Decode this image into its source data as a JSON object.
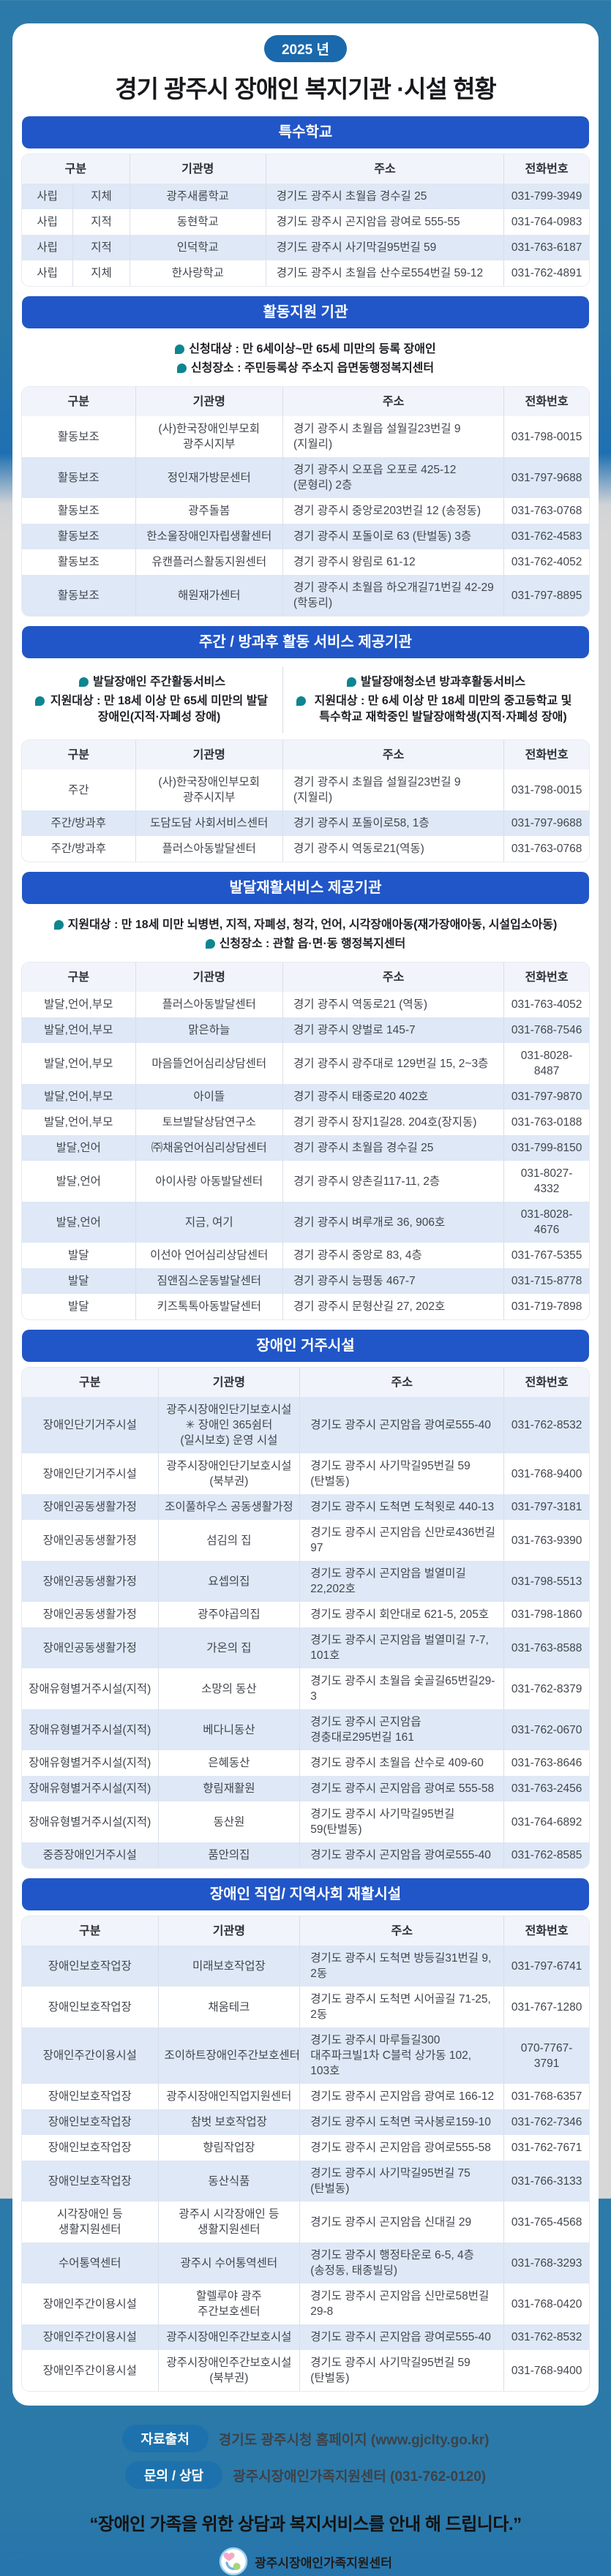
{
  "header": {
    "year_badge": "2025 년",
    "title": "경기 광주시 장애인 복지기관 ·시설 현황"
  },
  "colors": {
    "section_header_blue": "#2156c8",
    "badge_blue": "#1a69ad",
    "note_bubble_teal": "#0e8590",
    "row_tint": "#dee8f6",
    "background_top": "#2b79a8",
    "background_bottom": "#d7d7d7"
  },
  "sections": [
    {
      "id": "special-schools",
      "title": "특수학교",
      "columns": [
        "구분",
        "기관명",
        "주소",
        "전화번호"
      ],
      "split_category": true,
      "zebra_start": "tint",
      "rows": [
        {
          "cat": "사립",
          "sub": "지체",
          "name": "광주새롬학교",
          "addr": "경기도 광주시 초월읍 경수길 25",
          "tel": "031-799-3949"
        },
        {
          "cat": "사립",
          "sub": "지적",
          "name": "동현학교",
          "addr": "경기도 광주시 곤지암읍 광여로 555-55",
          "tel": "031-764-0983"
        },
        {
          "cat": "사립",
          "sub": "지적",
          "name": "인덕학교",
          "addr": "경기도 광주시 사기막길95번길 59",
          "tel": "031-763-6187"
        },
        {
          "cat": "사립",
          "sub": "지체",
          "name": "한사랑학교",
          "addr": "경기도 광주시 초월읍 산수로554번길 59-12",
          "tel": "031-762-4891"
        }
      ]
    },
    {
      "id": "activity-support",
      "title": "활동지원 기관",
      "notes": [
        "신청대상 : 만 6세이상~만 65세 미만의 등록 장애인",
        "신청장소 : 주민등록상 주소지 읍면동행정복지센터"
      ],
      "columns": [
        "구분",
        "기관명",
        "주소",
        "전화번호"
      ],
      "zebra_start": "white",
      "rows": [
        {
          "cat": "활동보조",
          "name": "(사)한국장애인부모회 광주시지부",
          "addr": "경기 광주시 초월읍 설월길23번길 9 (지월리)",
          "tel": "031-798-0015"
        },
        {
          "cat": "활동보조",
          "name": "정인재가방문센터",
          "addr": "경기 광주시 오포읍 오포로 425-12 (문형리) 2층",
          "tel": "031-797-9688"
        },
        {
          "cat": "활동보조",
          "name": "광주돌봄",
          "addr": "경기 광주시 중앙로203번길 12 (송정동)",
          "tel": "031-763-0768"
        },
        {
          "cat": "활동보조",
          "name": "한소울장애인자립생활센터",
          "addr": "경기 광주시 포돌이로 63 (탄벌동) 3층",
          "tel": "031-762-4583"
        },
        {
          "cat": "활동보조",
          "name": "유캔플러스활동지원센터",
          "addr": "경기 광주시 왕림로 61-12",
          "tel": "031-762-4052"
        },
        {
          "cat": "활동보조",
          "name": "해원재가센터",
          "addr": "경기 광주시 초월읍 하오개길71번길 42-29 (학동리)",
          "tel": "031-797-8895"
        }
      ]
    },
    {
      "id": "day-afterschool",
      "title": "주간 / 방과후 활동 서비스 제공기관",
      "notes_columns": [
        [
          "발달장애인 주간활동서비스",
          "지원대상 : 만 18세 이상 만 65세 미만의 발달장애인(지적·자폐성 장애)"
        ],
        [
          "발달장애청소년 방과후활동서비스",
          "지원대상 : 만 6세 이상 만 18세 미만의 중고등학교 및 특수학교 재학중인 발달장애학생(지적·자폐성 장애)"
        ]
      ],
      "columns": [
        "구분",
        "기관명",
        "주소",
        "전화번호"
      ],
      "zebra_start": "white",
      "rows": [
        {
          "cat": "주간",
          "name": "(사)한국장애인부모회 광주시지부",
          "addr": "경기 광주시 초월읍 설월길23번길 9 (지월리)",
          "tel": "031-798-0015"
        },
        {
          "cat": "주간/방과후",
          "name": "도담도담 사회서비스센터",
          "addr": "경기 광주시 포돌이로58, 1층",
          "tel": "031-797-9688"
        },
        {
          "cat": "주간/방과후",
          "name": "플러스아동발달센터",
          "addr": "경기 광주시 역동로21(역동)",
          "tel": "031-763-0768"
        }
      ]
    },
    {
      "id": "rehab-services",
      "title": "발달재활서비스 제공기관",
      "notes": [
        "지원대상 : 만 18세 미만 뇌병변, 지적, 자폐성, 청각, 언어, 시각장애아동(재가장애아동, 시설입소아동)",
        "신청장소 : 관할 읍·면·동 행정복지센터"
      ],
      "columns": [
        "구분",
        "기관명",
        "주소",
        "전화번호"
      ],
      "zebra_start": "white",
      "rows": [
        {
          "cat": "발달,언어,부모",
          "name": "플러스아동발달센터",
          "addr": "경기 광주시 역동로21 (역동)",
          "tel": "031-763-4052"
        },
        {
          "cat": "발달,언어,부모",
          "name": "맑은하늘",
          "addr": "경기 광주시 양벌로 145-7",
          "tel": "031-768-7546"
        },
        {
          "cat": "발달,언어,부모",
          "name": "마음뜰언어심리상담센터",
          "addr": "경기 광주시 광주대로 129번길 15, 2~3층",
          "tel": "031-8028-8487"
        },
        {
          "cat": "발달,언어,부모",
          "name": "아이뜰",
          "addr": "경기 광주시 태중로20 402호",
          "tel": "031-797-9870"
        },
        {
          "cat": "발달,언어,부모",
          "name": "토브발달상담연구소",
          "addr": "경기 광주시 장지1길28. 204호(장지동)",
          "tel": "031-763-0188"
        },
        {
          "cat": "발달,언어",
          "name": "㈜채움언어심리상담센터",
          "addr": "경기 광주시 초월읍 경수길 25",
          "tel": "031-799-8150"
        },
        {
          "cat": "발달,언어",
          "name": "아이사랑 아동발달센터",
          "addr": "경기 광주시 양촌길117-11, 2층",
          "tel": "031-8027-4332"
        },
        {
          "cat": "발달,언어",
          "name": "지금, 여기",
          "addr": "경기 광주시 벼루개로 36, 906호",
          "tel": "031-8028-4676"
        },
        {
          "cat": "발달",
          "name": "이선아 언어심리상담센터",
          "addr": "경기 광주시 중앙로 83, 4층",
          "tel": "031-767-5355"
        },
        {
          "cat": "발달",
          "name": "짐앤짐스운동발달센터",
          "addr": "경기 광주시 능평동 467-7",
          "tel": "031-715-8778"
        },
        {
          "cat": "발달",
          "name": "키즈톡톡아동발달센터",
          "addr": "경기 광주시 문형산길 27, 202호",
          "tel": "031-719-7898"
        }
      ]
    },
    {
      "id": "residential",
      "title": "장애인 거주시설",
      "columns": [
        "구분",
        "기관명",
        "주소",
        "전화번호"
      ],
      "wide_category": true,
      "zebra_start": "tint",
      "rows": [
        {
          "cat": "장애인단기거주시설",
          "name": "광주시장애인단기보호시설\n✳ 장애인 365쉼터\n(일시보호) 운영 시설",
          "addr": "경기도 광주시 곤지암읍 광여로555-40",
          "tel": "031-762-8532"
        },
        {
          "cat": "장애인단기거주시설",
          "name": "광주시장애인단기보호시설\n(북부권)",
          "addr": "경기도 광주시 사기막길95번길 59 (탄벌동)",
          "tel": "031-768-9400"
        },
        {
          "cat": "장애인공동생활가정",
          "name": "조이풀하우스 공동생활가정",
          "addr": "경기도 광주시 도척면 도척윗로 440-13",
          "tel": "031-797-3181"
        },
        {
          "cat": "장애인공동생활가정",
          "name": "섬김의 집",
          "addr": "경기도 광주시 곤지암읍 신만로436번길 97",
          "tel": "031-763-9390"
        },
        {
          "cat": "장애인공동생활가정",
          "name": "요셉의집",
          "addr": "경기도 광주시 곤지암읍 벌열미길 22,202호",
          "tel": "031-798-5513"
        },
        {
          "cat": "장애인공동생활가정",
          "name": "광주야곱의집",
          "addr": "경기도 광주시 회안대로 621-5, 205호",
          "tel": "031-798-1860"
        },
        {
          "cat": "장애인공동생활가정",
          "name": "가온의 집",
          "addr": "경기도 광주시 곤지암읍 벌열미길 7-7, 101호",
          "tel": "031-763-8588"
        },
        {
          "cat": "장애유형별거주시설(지적)",
          "name": "소망의 동산",
          "addr": "경기도 광주시 초월읍 숯골길65번길29-3",
          "tel": "031-762-8379"
        },
        {
          "cat": "장애유형별거주시설(지적)",
          "name": "베다니동산",
          "addr": "경기도 광주시 곤지암읍 경충대로295번길 161",
          "tel": "031-762-0670"
        },
        {
          "cat": "장애유형별거주시설(지적)",
          "name": "은혜동산",
          "addr": "경기도 광주시 초월읍 산수로 409-60",
          "tel": "031-763-8646"
        },
        {
          "cat": "장애유형별거주시설(지적)",
          "name": "향림재활원",
          "addr": "경기도 광주시 곤지암읍 광여로 555-58",
          "tel": "031-763-2456"
        },
        {
          "cat": "장애유형별거주시설(지적)",
          "name": "동산원",
          "addr": "경기도 광주시 사기막길95번길 59(탄벌동)",
          "tel": "031-764-6892"
        },
        {
          "cat": "중증장애인거주시설",
          "name": "품안의집",
          "addr": "경기도 광주시 곤지암읍 광여로555-40",
          "tel": "031-762-8585"
        }
      ]
    },
    {
      "id": "vocational",
      "title": "장애인 직업/ 지역사회 재활시설",
      "columns": [
        "구분",
        "기관명",
        "주소",
        "전화번호"
      ],
      "wide_category": true,
      "zebra_start": "tint",
      "rows": [
        {
          "cat": "장애인보호작업장",
          "name": "미래보호작업장",
          "addr": "경기도 광주시 도척면 방등길31번길 9, 2동",
          "tel": "031-797-6741"
        },
        {
          "cat": "장애인보호작업장",
          "name": "채움테크",
          "addr": "경기도 광주시 도척면 시어골길 71-25, 2동",
          "tel": "031-767-1280"
        },
        {
          "cat": "장애인주간이용시설",
          "name": "조이하트장애인주간보호센터",
          "addr": "경기도 광주시 마루들길300 대주파크빌1차 C블럭 상가동 102, 103호",
          "tel": "070-7767-3791"
        },
        {
          "cat": "장애인보호작업장",
          "name": "광주시장애인직업지원센터",
          "addr": "경기도 광주시 곤지암읍 광여로 166-12",
          "tel": "031-768-6357"
        },
        {
          "cat": "장애인보호작업장",
          "name": "참벗 보호작업장",
          "addr": "경기도 광주시 도척면 국사봉로159-10",
          "tel": "031-762-7346"
        },
        {
          "cat": "장애인보호작업장",
          "name": "향림작업장",
          "addr": "경기도 광주시 곤지암읍 광여로555-58",
          "tel": "031-762-7671"
        },
        {
          "cat": "장애인보호작업장",
          "name": "동산식품",
          "addr": "경기도 광주시 사기막길95번길 75 (탄벌동)",
          "tel": "031-766-3133"
        },
        {
          "cat": "시각장애인 등 생활지원센터",
          "name": "광주시 시각장애인 등\n생활지원센터",
          "addr": "경기도 광주시 곤지암읍 신대길 29",
          "tel": "031-765-4568"
        },
        {
          "cat": "수어통역센터",
          "name": "광주시 수어통역센터",
          "addr": "경기도 광주시 행정타운로 6-5, 4층(송정동, 태종빌딩)",
          "tel": "031-768-3293"
        },
        {
          "cat": "장애인주간이용시설",
          "name": "할렐루야 광주 주간보호센터",
          "addr": "경기도 광주시 곤지암읍 신만로58번길 29-8",
          "tel": "031-768-0420"
        },
        {
          "cat": "장애인주간이용시설",
          "name": "광주시장애인주간보호시설",
          "addr": "경기도 광주시 곤지암읍 광여로555-40",
          "tel": "031-762-8532"
        },
        {
          "cat": "장애인주간이용시설",
          "name": "광주시장애인주간보호시설\n(북부권)",
          "addr": "경기도 광주시 사기막길95번길 59 (탄벌동)",
          "tel": "031-768-9400"
        }
      ]
    }
  ],
  "footer": {
    "source_label": "자료출처",
    "source_text": "경기도 광주시청 홈페이지 (www.gjclty.go.kr)",
    "contact_label": "문의 / 상담",
    "contact_text": "광주시장애인가족지원센터 (031-762-0120)",
    "quote": "“장애인 가족을 위한 상담과 복지서비스를 안내 해 드립니다.”",
    "logo_text": "광주시장애인가족지원센터"
  }
}
